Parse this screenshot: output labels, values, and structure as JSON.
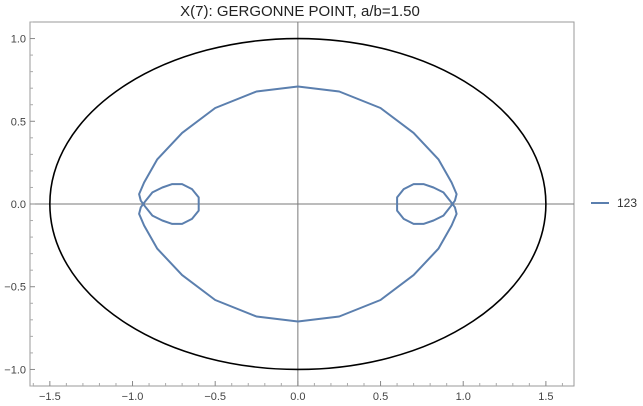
{
  "chart_data": {
    "type": "line",
    "title": "X(7): GERGONNE POINT, a/b=1.50",
    "xlabel": "",
    "ylabel": "",
    "xlim": [
      -1.62,
      1.67
    ],
    "ylim": [
      -1.1,
      1.1
    ],
    "xticks": [
      -1.5,
      -1.0,
      -0.5,
      0.0,
      0.5,
      1.0,
      1.5
    ],
    "xtick_labels": [
      "-1.5",
      "-1.0",
      "-0.5",
      "0.0",
      "0.5",
      "1.0",
      "1.5"
    ],
    "yticks": [
      -1.0,
      -0.5,
      0.0,
      0.5,
      1.0
    ],
    "ytick_labels": [
      "-1.0",
      "-0.5",
      "0.0",
      "0.5",
      "1.0"
    ],
    "grid": false,
    "legend_position": "right",
    "legend": [
      "123"
    ],
    "series": [
      {
        "name": "",
        "role": "ellipse",
        "color": "#000000",
        "shape": {
          "a": 1.5,
          "b": 1.0
        }
      },
      {
        "name": "123",
        "role": "locus",
        "color": "#5b7fae",
        "x": [
          0.0,
          0.25,
          0.5,
          0.7,
          0.85,
          0.93,
          0.96,
          0.95,
          0.92,
          0.88,
          0.82,
          0.76,
          0.7,
          0.64,
          0.6,
          0.6,
          0.64,
          0.7,
          0.76,
          0.82,
          0.88,
          0.92,
          0.95,
          0.96,
          0.93,
          0.85,
          0.7,
          0.5,
          0.25,
          0.0,
          -0.25,
          -0.5,
          -0.7,
          -0.85,
          -0.93,
          -0.96,
          -0.95,
          -0.92,
          -0.88,
          -0.82,
          -0.76,
          -0.7,
          -0.64,
          -0.6,
          -0.6,
          -0.64,
          -0.7,
          -0.76,
          -0.82,
          -0.88,
          -0.92,
          -0.95,
          -0.96,
          -0.93,
          -0.85,
          -0.7,
          -0.5,
          -0.25,
          0.0
        ],
        "y": [
          0.71,
          0.68,
          0.58,
          0.43,
          0.27,
          0.13,
          0.06,
          0.02,
          -0.02,
          -0.07,
          -0.1,
          -0.12,
          -0.12,
          -0.09,
          -0.04,
          0.04,
          0.09,
          0.12,
          0.12,
          0.1,
          0.07,
          0.02,
          -0.02,
          -0.06,
          -0.13,
          -0.27,
          -0.43,
          -0.58,
          -0.68,
          -0.71,
          -0.68,
          -0.58,
          -0.43,
          -0.27,
          -0.13,
          -0.06,
          -0.02,
          0.02,
          0.07,
          0.1,
          0.12,
          0.12,
          0.09,
          0.04,
          -0.04,
          -0.09,
          -0.12,
          -0.12,
          -0.1,
          -0.07,
          -0.02,
          0.02,
          0.06,
          0.13,
          0.27,
          0.43,
          0.58,
          0.68,
          0.71
        ]
      }
    ]
  }
}
